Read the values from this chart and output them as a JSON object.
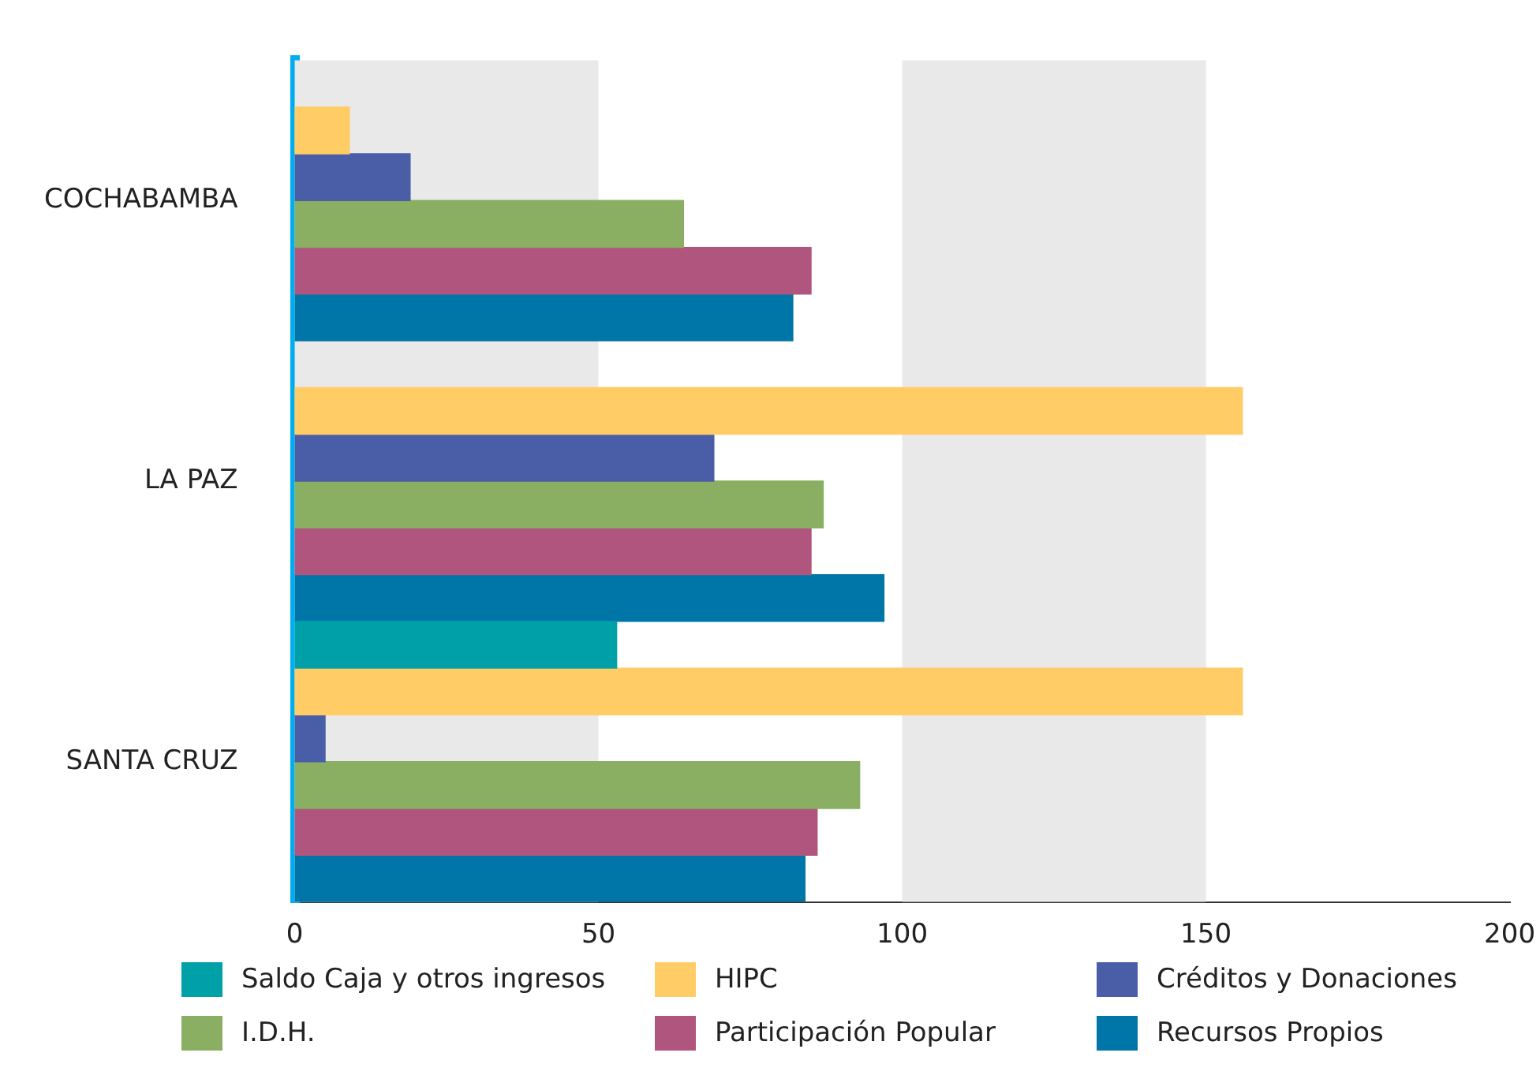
{
  "chart_data": {
    "type": "bar",
    "orientation": "horizontal",
    "categories": [
      "COCHABAMBA",
      "LA PAZ",
      "SANTA CRUZ"
    ],
    "series": [
      {
        "name": "Saldo Caja y otros ingresos",
        "color": "#00a0a8",
        "values": [
          null,
          null,
          53
        ]
      },
      {
        "name": "HIPC",
        "color": "#ffcc66",
        "values": [
          9,
          156,
          156
        ]
      },
      {
        "name": "Créditos y Donaciones",
        "color": "#4a5ea8",
        "values": [
          19,
          69,
          5
        ]
      },
      {
        "name": "I.D.H.",
        "color": "#8aae62",
        "values": [
          64,
          87,
          93
        ]
      },
      {
        "name": "Participación Popular",
        "color": "#b0567e",
        "values": [
          85,
          85,
          86
        ]
      },
      {
        "name": "Recursos Propios",
        "color": "#0076a8",
        "values": [
          82,
          97,
          84
        ]
      }
    ],
    "xlim": [
      0,
      200
    ],
    "xticks": [
      0,
      50,
      100,
      150,
      200
    ],
    "bands": [
      {
        "axis": "x",
        "from": 0,
        "to": 50,
        "color": "#e9e9e9"
      },
      {
        "axis": "x",
        "from": 100,
        "to": 150,
        "color": "#e9e9e9"
      }
    ],
    "legend": "bottom"
  }
}
